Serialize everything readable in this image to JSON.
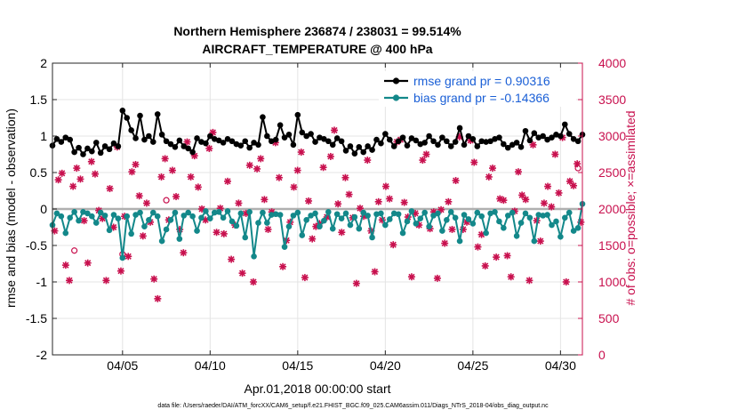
{
  "chart_data": {
    "type": "line",
    "title_line1": "Northern Hemisphere 236874 / 238031 = 99.514%",
    "title_line2": "AIRCRAFT_TEMPERATURE @ 400 hPa",
    "xlabel": "Apr.01,2018 00:00:00 start",
    "ylabel_left": "rmse and bias (model - observation)",
    "ylabel_right": "# of obs: o=possible; ×=assimilated",
    "footer": "data file: /Users/raeder/DAI/ATM_forcXX/CAM6_setup/f.e21.FHIST_BGC.f09_025.CAM6assim.011/Diags_NTrS_2018-04/obs_diag_output.nc",
    "xlim": [
      1,
      31.25
    ],
    "x_ticks": [
      5,
      10,
      15,
      20,
      25,
      30
    ],
    "x_tick_labels": [
      "04/05",
      "04/10",
      "04/15",
      "04/20",
      "04/25",
      "04/30"
    ],
    "ylim_left": [
      -2,
      2
    ],
    "y_ticks_left": [
      -2,
      -1.5,
      -1,
      -0.5,
      0,
      0.5,
      1,
      1.5,
      2
    ],
    "y_tick_labels_left": [
      "-2",
      "-1.5",
      "-1",
      "-0.5",
      "0",
      "0.5",
      "1",
      "1.5",
      "2"
    ],
    "ylim_right": [
      0,
      4000
    ],
    "y_ticks_right": [
      0,
      500,
      1000,
      1500,
      2000,
      2500,
      3000,
      3500,
      4000
    ],
    "y_tick_labels_right": [
      "0",
      "500",
      "1000",
      "1500",
      "2000",
      "2500",
      "3000",
      "3500",
      "4000"
    ],
    "grid": true,
    "legend_position": "top-right",
    "step_days": 0.25,
    "x_start": 1.0,
    "series": [
      {
        "name": "rmse",
        "legend": "rmse grand pr = 0.90316",
        "color": "#000000",
        "values": [
          0.87,
          0.96,
          0.92,
          0.98,
          0.95,
          0.78,
          0.84,
          0.75,
          0.83,
          0.79,
          0.91,
          0.77,
          0.86,
          0.82,
          0.9,
          0.86,
          1.35,
          1.25,
          1.08,
          0.97,
          1.28,
          0.95,
          1.0,
          0.92,
          1.3,
          1.02,
          0.93,
          0.89,
          0.85,
          0.94,
          0.86,
          0.83,
          0.78,
          0.97,
          0.92,
          0.9,
          1.0,
          0.96,
          0.94,
          0.91,
          0.96,
          0.93,
          0.89,
          0.87,
          0.93,
          0.84,
          0.91,
          0.88,
          1.26,
          1.0,
          0.93,
          0.95,
          1.15,
          0.98,
          1.02,
          0.88,
          1.29,
          1.05,
          1.0,
          1.03,
          0.92,
          0.98,
          0.96,
          0.93,
          0.88,
          0.97,
          0.93,
          0.8,
          0.86,
          0.76,
          0.85,
          0.78,
          0.86,
          0.81,
          0.95,
          0.9,
          1.03,
          0.95,
          0.86,
          0.93,
          0.98,
          0.87,
          0.97,
          0.94,
          0.89,
          0.91,
          1.0,
          0.93,
          0.88,
          0.98,
          0.93,
          0.86,
          0.92,
          1.11,
          0.88,
          1.0,
          0.96,
          0.86,
          0.93,
          0.92,
          0.93,
          0.96,
          0.98,
          0.89,
          0.84,
          0.88,
          0.91,
          0.85,
          1.07,
          0.94,
          1.04,
          0.98,
          1.0,
          0.95,
          0.98,
          1.02,
          1.0,
          1.16,
          1.03,
          0.96,
          0.93,
          1.02
        ]
      },
      {
        "name": "bias",
        "legend": "bias grand pr = -0.14366",
        "color": "#13888a",
        "values": [
          -0.22,
          -0.06,
          -0.1,
          -0.33,
          -0.12,
          -0.04,
          -0.16,
          -0.04,
          -0.06,
          -0.1,
          -0.19,
          -0.05,
          -0.09,
          -0.29,
          -0.08,
          -0.13,
          -0.67,
          -0.1,
          -0.34,
          -0.08,
          -0.05,
          -0.24,
          -0.15,
          -0.05,
          -0.1,
          -0.44,
          -0.28,
          -0.15,
          -0.05,
          -0.41,
          -0.09,
          -0.05,
          -0.1,
          -0.3,
          -0.12,
          -0.03,
          -0.13,
          -0.05,
          -0.04,
          -0.12,
          -0.03,
          -0.17,
          -0.23,
          -0.06,
          -0.39,
          -0.04,
          -0.65,
          -0.19,
          -0.05,
          -0.19,
          -0.08,
          -0.07,
          -0.08,
          -0.52,
          -0.24,
          -0.09,
          -0.05,
          -0.36,
          -0.15,
          -0.09,
          -0.06,
          -0.24,
          -0.16,
          -0.04,
          -0.27,
          -0.07,
          -0.13,
          -0.06,
          -0.22,
          -0.11,
          -0.27,
          -0.05,
          -0.09,
          -0.39,
          -0.07,
          -0.06,
          -0.22,
          -0.14,
          -0.06,
          -0.07,
          -0.33,
          -0.17,
          -0.03,
          -0.2,
          -0.13,
          -0.05,
          -0.24,
          -0.09,
          -0.06,
          -0.3,
          -0.15,
          -0.04,
          -0.12,
          -0.44,
          -0.08,
          -0.14,
          -0.2,
          -0.05,
          -0.1,
          -0.33,
          -0.06,
          -0.04,
          -0.17,
          -0.26,
          -0.09,
          -0.05,
          -0.37,
          -0.19,
          -0.06,
          -0.12,
          -0.44,
          -0.08,
          -0.09,
          -0.08,
          -0.22,
          -0.17,
          -0.38,
          -0.12,
          -0.05,
          -0.3,
          -0.26,
          0.07
        ]
      }
    ],
    "obs_possible": [
      1700,
      2400,
      2490,
      1230,
      1020,
      2310,
      2560,
      2410,
      1840,
      1260,
      2650,
      2480,
      1980,
      1870,
      1020,
      2280,
      1750,
      2850,
      1150,
      1900,
      1350,
      2510,
      2610,
      2180,
      1630,
      2080,
      1820,
      1040,
      770,
      2440,
      2690,
      1850,
      2530,
      2170,
      1720,
      1400,
      2920,
      2440,
      2730,
      2300,
      2000,
      1850,
      2830,
      3050,
      1680,
      2010,
      1660,
      2380,
      1310,
      1780,
      2080,
      1120,
      1940,
      2600,
      1000,
      2550,
      2690,
      2130,
      1720,
      1960,
      2910,
      2430,
      1210,
      1570,
      1820,
      2300,
      2530,
      2780,
      1060,
      2110,
      1590,
      1760,
      1800,
      2570,
      1890,
      2720,
      3080,
      2070,
      1680,
      2430,
      2200,
      1880,
      980,
      2010,
      1900,
      2670,
      1700,
      1140,
      2100,
      1850,
      2310,
      2140,
      1510,
      2920,
      2950,
      2090,
      1890,
      1070,
      1940,
      1780,
      2670,
      2750,
      1730,
      1960,
      1050,
      1990,
      1530,
      2100,
      1720,
      2390,
      2990,
      1720,
      1820,
      2940,
      2640,
      1480,
      1650,
      1220,
      2440,
      2560,
      1340,
      2140,
      2120,
      1360,
      1070,
      1970,
      2510,
      2190,
      2130,
      1020,
      2880,
      1840,
      1560,
      2080,
      2310,
      2030,
      2750,
      2220,
      2980,
      1000,
      2380,
      2320,
      2620,
      1820
    ],
    "obs_highlight_points": [
      [
        5,
        1380
      ],
      [
        7.5,
        2120
      ],
      [
        31,
        2560
      ],
      [
        2.25,
        1430
      ]
    ]
  }
}
